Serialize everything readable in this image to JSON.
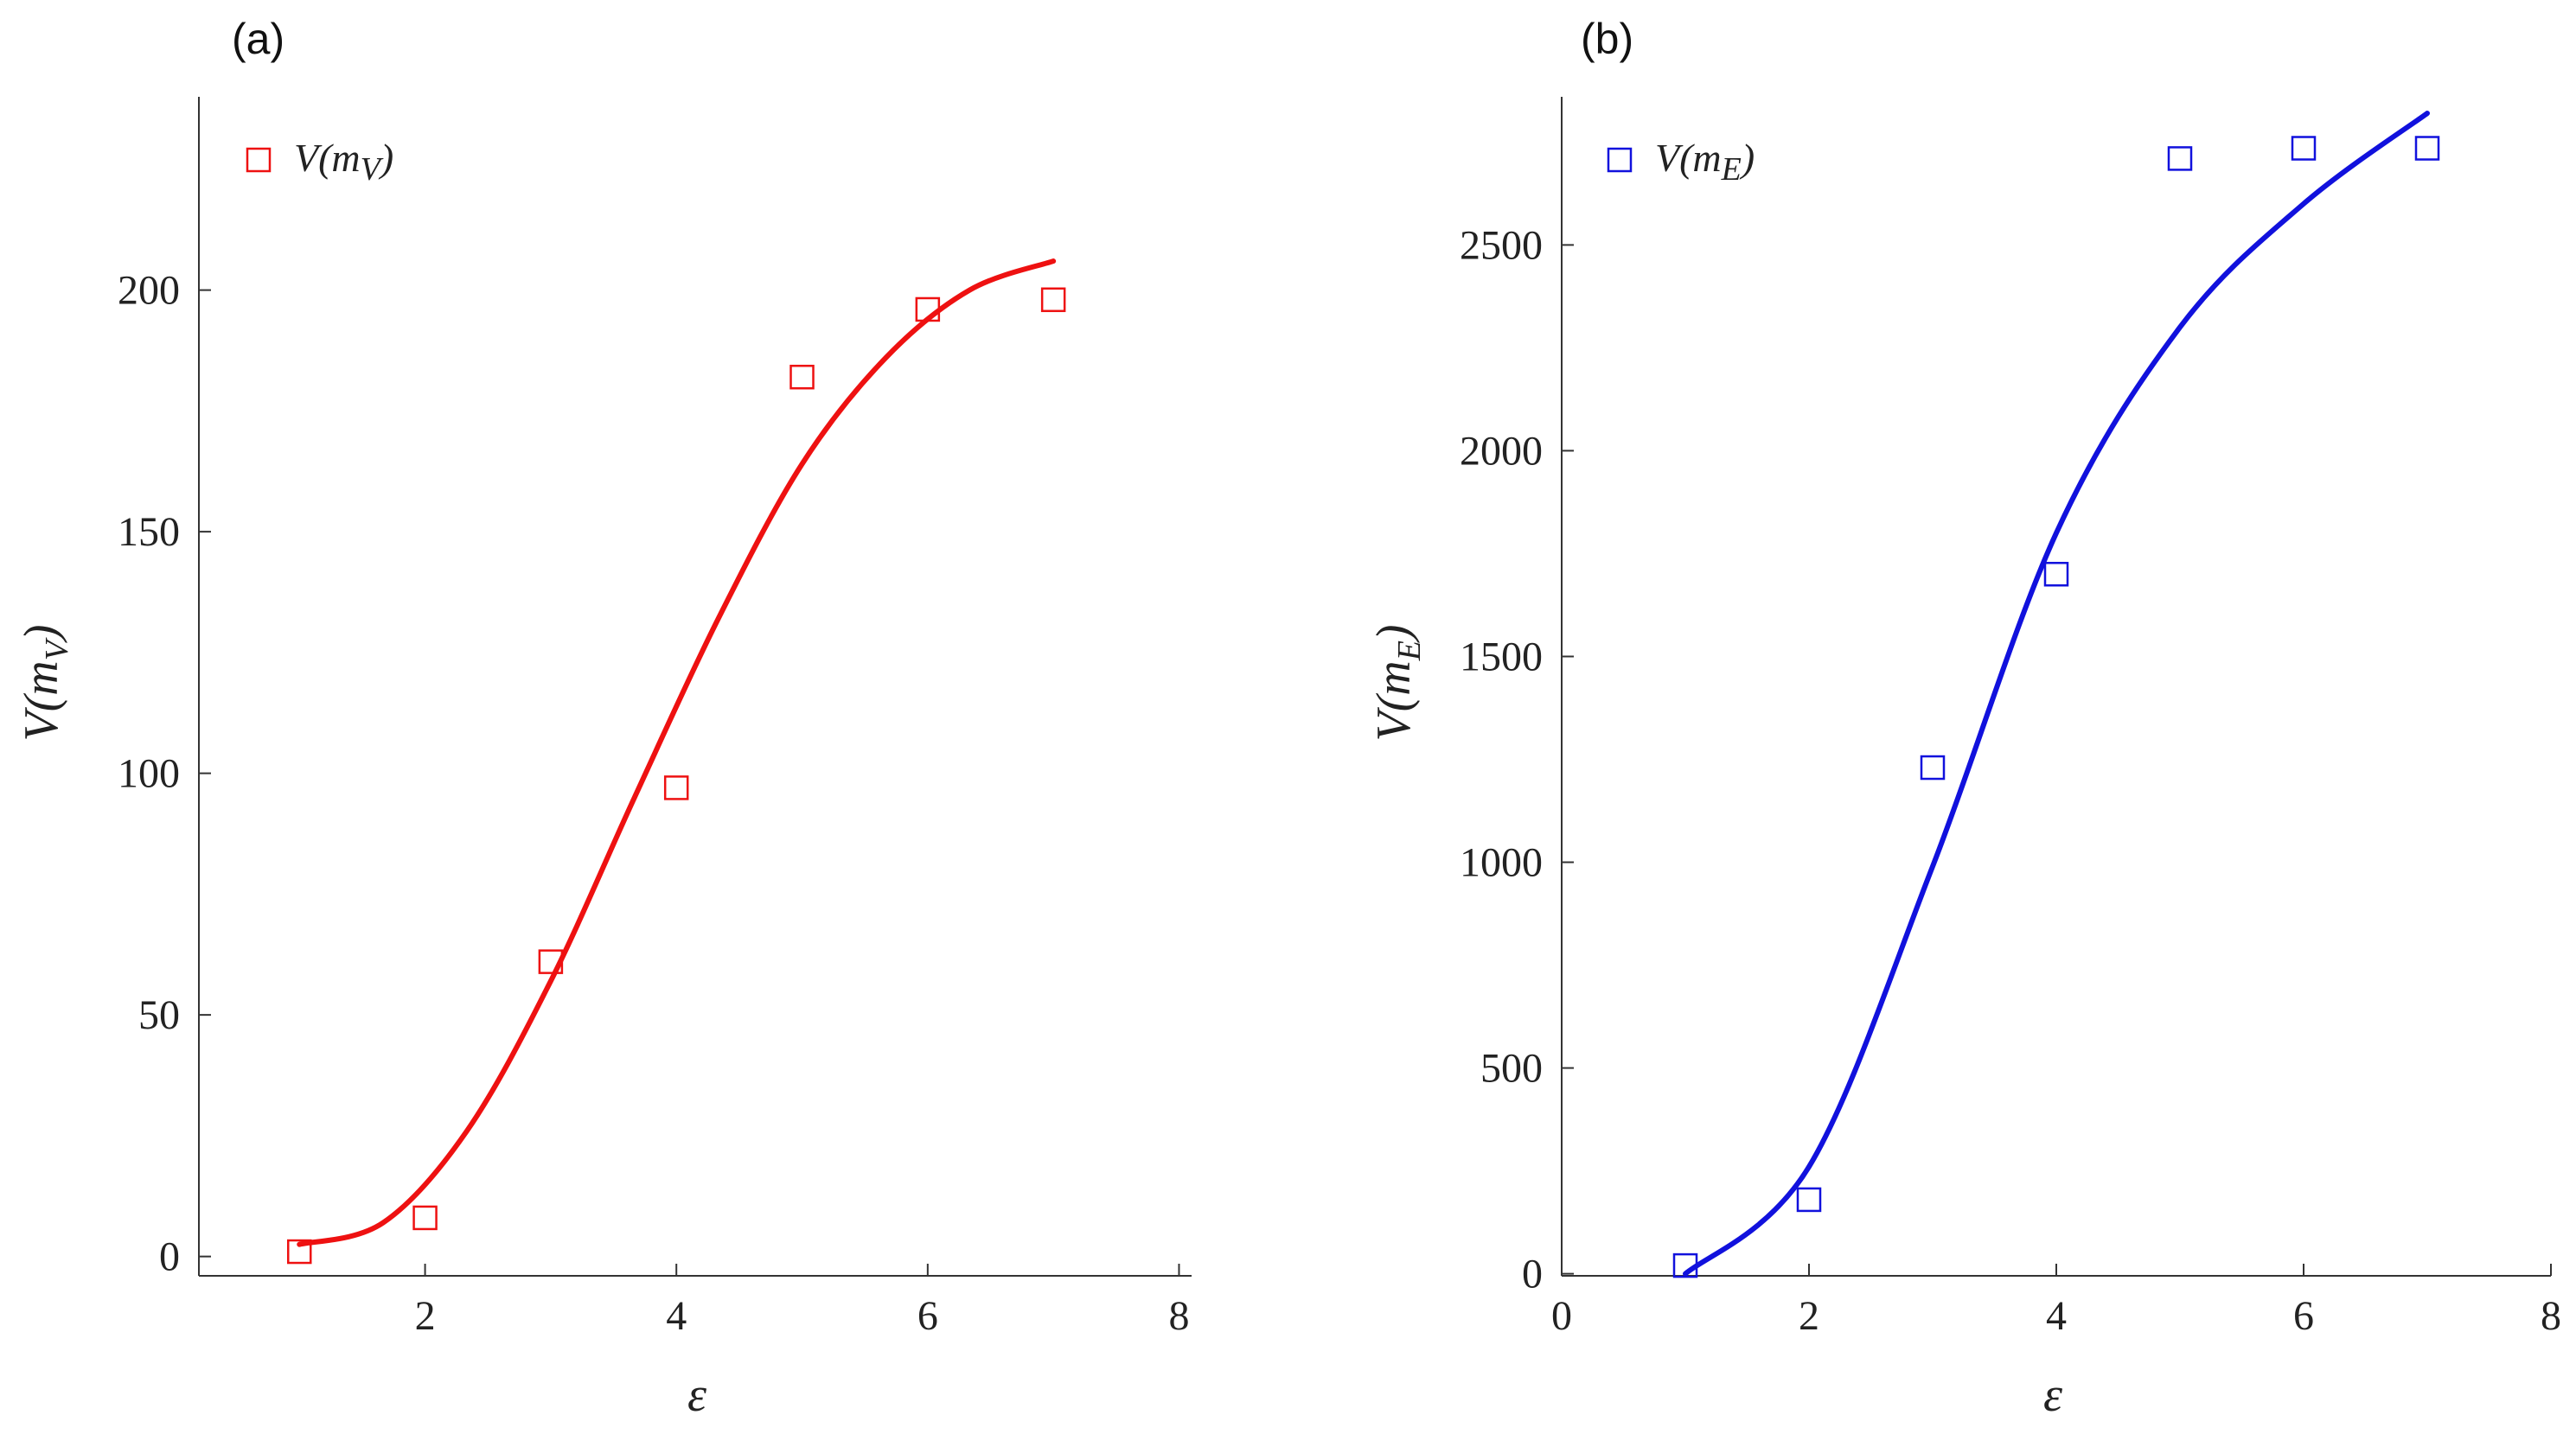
{
  "chart_data": [
    {
      "panel_label": "(a)",
      "type": "scatter",
      "x_ticks": [
        2,
        4,
        6,
        8
      ],
      "y_ticks": [
        0,
        50,
        100,
        150,
        200
      ],
      "xlim": [
        0.2,
        8.1
      ],
      "ylim": [
        -4,
        240
      ],
      "xlabel": "ε",
      "ylabel": {
        "main": "V(m",
        "sub": "V",
        "close": ")"
      },
      "legend": {
        "main": "V(m",
        "sub": "V",
        "close": ")",
        "position": "top-left"
      },
      "color": "#ee1111",
      "points": {
        "x": [
          1,
          2,
          3,
          4,
          5,
          6,
          7
        ],
        "y": [
          1,
          8,
          61,
          97,
          182,
          196,
          198
        ]
      },
      "fit": {
        "kind": "line",
        "x_range": [
          1,
          7
        ],
        "y": [
          2.5,
          7,
          26,
          57,
          95,
          132,
          164,
          186,
          200,
          206
        ]
      }
    },
    {
      "panel_label": "(b)",
      "type": "scatter",
      "x_ticks": [
        0,
        2,
        4,
        6,
        8
      ],
      "y_ticks": [
        0,
        500,
        1000,
        1500,
        2000,
        2500
      ],
      "xlim": [
        0,
        8
      ],
      "ylim": [
        -5,
        2860
      ],
      "xlabel": "ε",
      "ylabel": {
        "main": "V(m",
        "sub": "E",
        "close": ")"
      },
      "legend": {
        "main": "V(m",
        "sub": "E",
        "close": ")",
        "position": "top-left"
      },
      "color": "#1111dd",
      "points": {
        "x": [
          1,
          2,
          3,
          4,
          5,
          6,
          7
        ],
        "y": [
          20,
          180,
          1230,
          1700,
          2710,
          2735,
          2735
        ]
      },
      "fit": {
        "kind": "line",
        "x_range": [
          1,
          7
        ],
        "y": [
          0,
          260,
          990,
          1800,
          2300,
          2600,
          2820
        ]
      }
    }
  ]
}
